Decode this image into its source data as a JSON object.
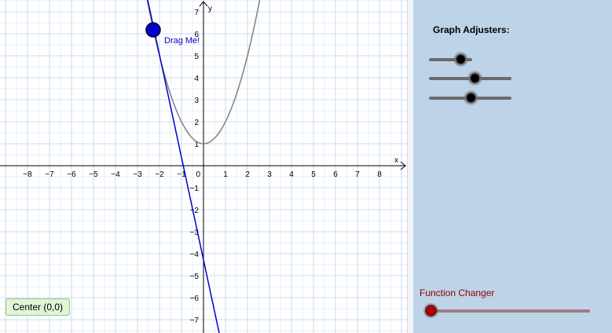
{
  "graph": {
    "x_axis_label": "x",
    "y_axis_label": "y",
    "x_ticks": [
      "−8",
      "−7",
      "−6",
      "−5",
      "−4",
      "−3",
      "−2",
      "−1",
      "0",
      "1",
      "2",
      "3",
      "4",
      "5",
      "6",
      "7",
      "8"
    ],
    "y_ticks_positive": [
      "7",
      "6",
      "5",
      "4",
      "3",
      "2",
      "1"
    ],
    "y_ticks_negative": [
      "−1",
      "−2",
      "−3",
      "−4",
      "−5",
      "−6",
      "−7"
    ],
    "drag_point_label": "Drag Me!",
    "drag_point_color": "#0000cc",
    "line_color": "#0000cc",
    "curve_color": "#808080",
    "grid_color": "#c8dcf0"
  },
  "panel": {
    "heading": "Graph Adjusters:",
    "function_label": "Function Changer",
    "sliders": [
      0.72,
      0.55,
      0.5
    ],
    "function_slider": 0.0
  },
  "buttons": {
    "center_label": "Center (0,0)"
  }
}
